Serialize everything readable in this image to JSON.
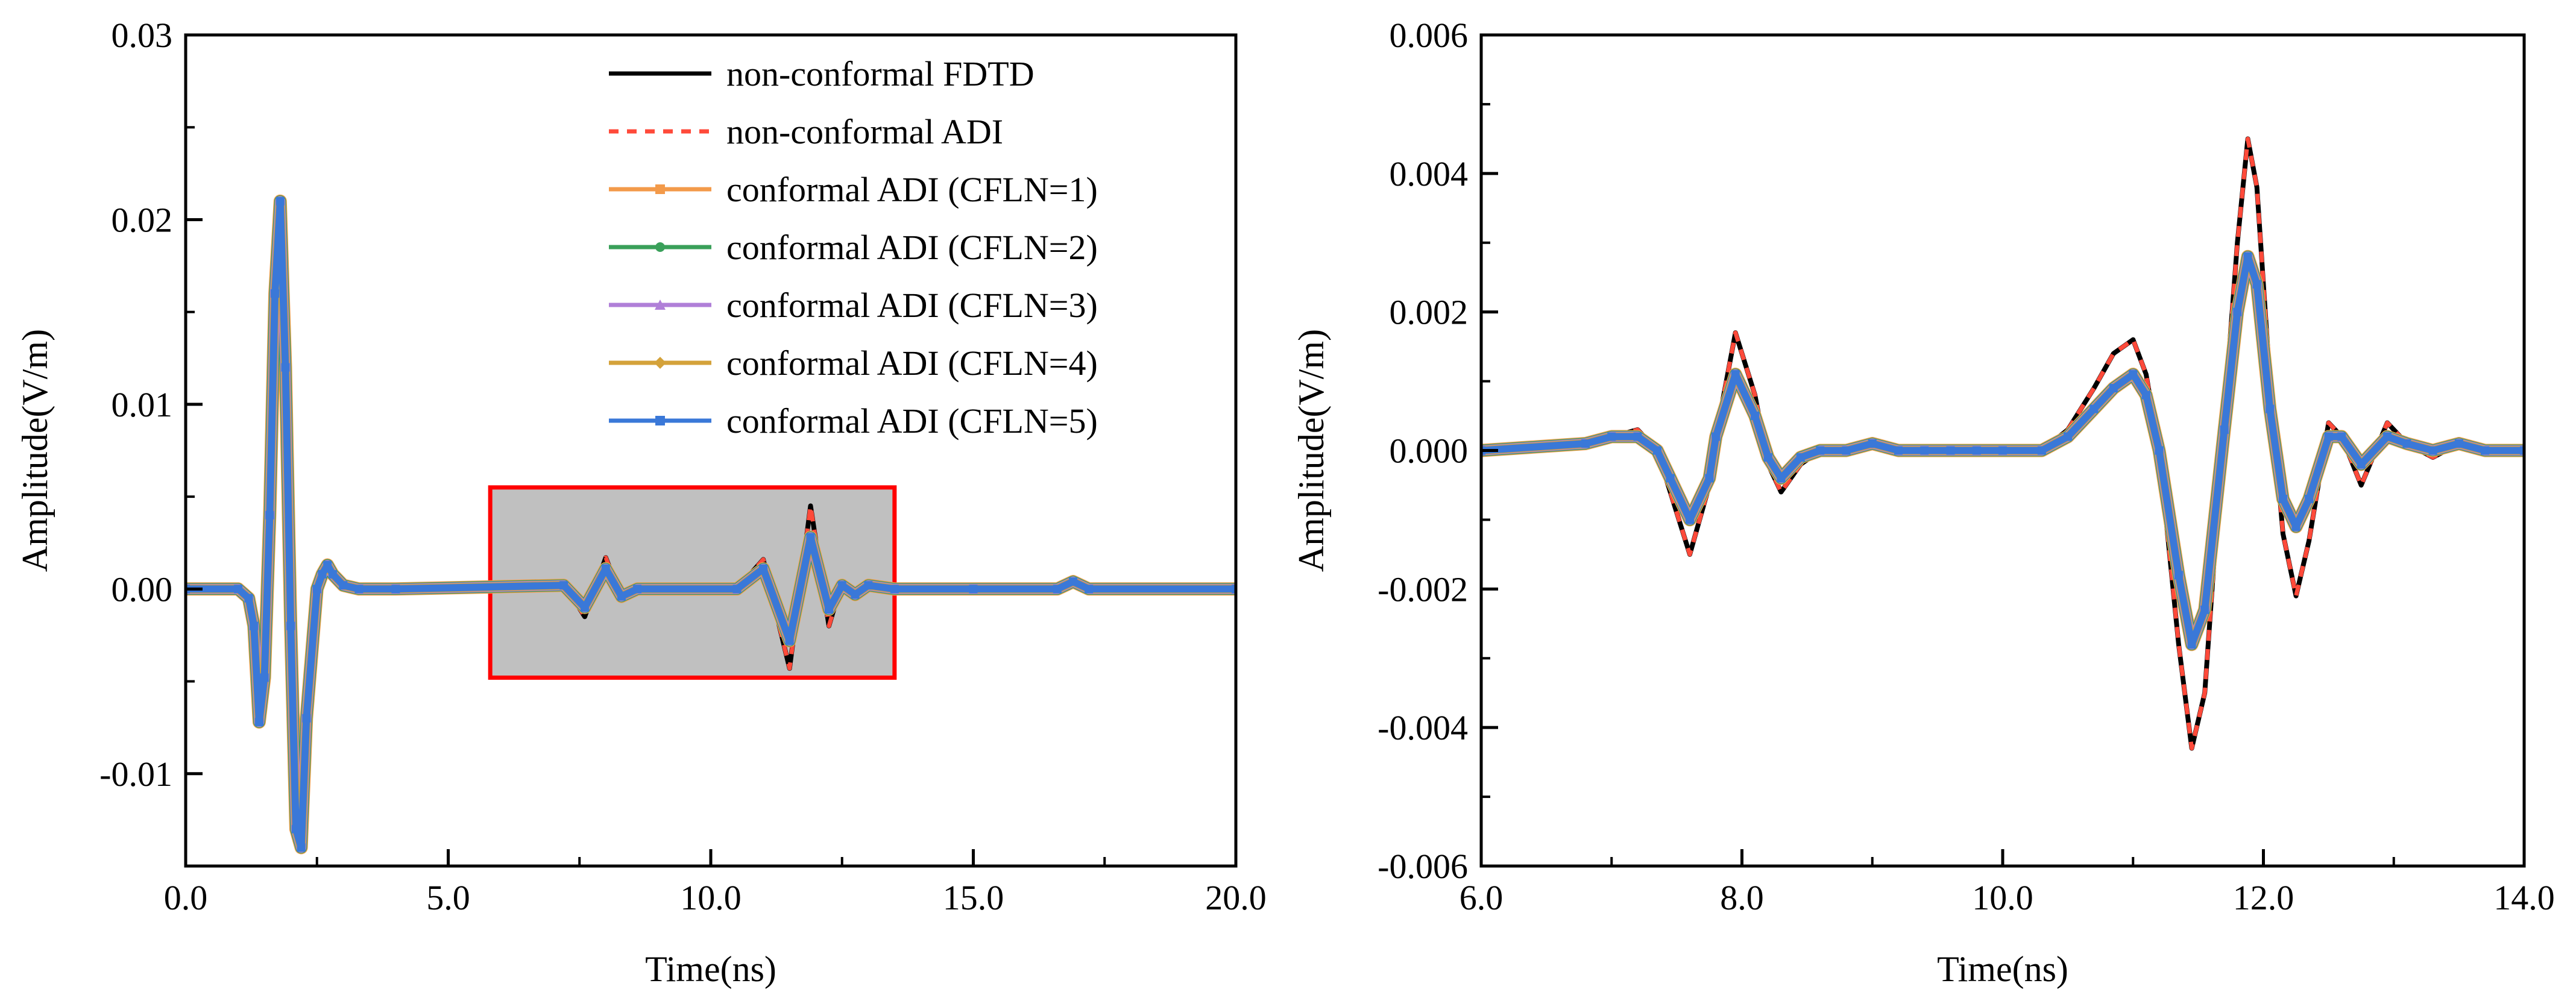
{
  "colors": {
    "fdtd": "#000000",
    "adi": "#ff4a3a",
    "cfl1": "#f39a4a",
    "cfl2": "#3aa05a",
    "cfl3": "#b07fd8",
    "cfl4": "#d4a23a",
    "cfl5": "#3a78d8",
    "zoom_box_fill": "#c0c0c0",
    "zoom_box_stroke": "#ff0000"
  },
  "chart_data": [
    {
      "type": "line",
      "xlabel": "Time(ns)",
      "ylabel": "Amplitude(V/m)",
      "xlim": [
        0,
        20
      ],
      "ylim": [
        -0.015,
        0.03
      ],
      "xticks": [
        "0.0",
        "5.0",
        "10.0",
        "15.0",
        "20.0"
      ],
      "yticks": [
        "-0.01",
        "0.00",
        "0.01",
        "0.02",
        "0.03"
      ],
      "grid": false,
      "legend_position": "top-right",
      "zoom_box": {
        "x": [
          5.8,
          13.5
        ],
        "y": [
          -0.0048,
          0.0055
        ]
      },
      "series": [
        {
          "name": "non-conformal FDTD",
          "style": "solid"
        },
        {
          "name": "non-conformal ADI",
          "style": "dashed"
        },
        {
          "name": "conformal ADI (CFLN=1)",
          "marker": "square"
        },
        {
          "name": "conformal ADI (CFLN=2)",
          "marker": "circle"
        },
        {
          "name": "conformal ADI (CFLN=3)",
          "marker": "triangle"
        },
        {
          "name": "conformal ADI (CFLN=4)",
          "marker": "diamond"
        },
        {
          "name": "conformal ADI (CFLN=5)",
          "marker": "square"
        }
      ],
      "fdtd": {
        "x": [
          0.0,
          1.0,
          1.2,
          1.3,
          1.4,
          1.5,
          1.6,
          1.7,
          1.8,
          1.9,
          2.0,
          2.1,
          2.2,
          2.3,
          2.5,
          2.6,
          2.7,
          2.8,
          3.0,
          3.3,
          4.0,
          7.2,
          7.6,
          8.0,
          8.3,
          8.6,
          10.5,
          11.0,
          11.5,
          11.9,
          12.25,
          12.5,
          12.75,
          13.0,
          13.5,
          15.0,
          16.6,
          16.9,
          17.2,
          20.0
        ],
        "y": [
          0,
          0,
          -0.0005,
          -0.002,
          -0.0068,
          -0.0045,
          0.004,
          0.016,
          0.0212,
          0.012,
          -0.002,
          -0.013,
          -0.014,
          -0.007,
          0,
          0.0008,
          0.0013,
          0.0008,
          0.0002,
          0,
          0,
          0.0003,
          -0.0015,
          0.0017,
          -0.0005,
          0,
          0,
          0.0016,
          -0.0043,
          0.0045,
          -0.002,
          0.0004,
          -0.0005,
          0.0003,
          0,
          0,
          0,
          0.0005,
          0,
          0
        ]
      },
      "adi": {
        "x": [
          0.0,
          1.0,
          1.2,
          1.3,
          1.4,
          1.5,
          1.6,
          1.7,
          1.8,
          1.9,
          2.0,
          2.1,
          2.2,
          2.3,
          2.5,
          2.6,
          2.7,
          2.8,
          3.0,
          3.3,
          4.0,
          7.2,
          7.6,
          8.0,
          8.3,
          8.6,
          10.5,
          11.0,
          11.5,
          11.9,
          12.25,
          12.5,
          12.75,
          13.0,
          13.5,
          15.0,
          16.6,
          16.9,
          17.2,
          20.0
        ],
        "y": [
          0,
          0,
          -0.0005,
          -0.002,
          -0.0068,
          -0.0045,
          0.004,
          0.016,
          0.0212,
          0.012,
          -0.002,
          -0.013,
          -0.014,
          -0.007,
          0,
          0.0008,
          0.0013,
          0.0008,
          0.0002,
          0,
          0,
          0.0003,
          -0.0015,
          0.0017,
          -0.0005,
          0,
          0,
          0.0016,
          -0.0043,
          0.0045,
          -0.002,
          0.0004,
          -0.0005,
          0.0003,
          0,
          0,
          0,
          0.0005,
          0,
          0
        ]
      },
      "conformal": {
        "x": [
          0.0,
          1.0,
          1.2,
          1.3,
          1.4,
          1.5,
          1.6,
          1.7,
          1.8,
          1.9,
          2.0,
          2.1,
          2.2,
          2.3,
          2.5,
          2.6,
          2.7,
          2.8,
          3.0,
          3.3,
          4.0,
          7.2,
          7.6,
          8.0,
          8.3,
          8.6,
          10.5,
          11.0,
          11.5,
          11.9,
          12.25,
          12.5,
          12.75,
          13.0,
          13.5,
          15.0,
          16.6,
          16.9,
          17.2,
          20.0
        ],
        "y": [
          0,
          0,
          -0.0005,
          -0.002,
          -0.0072,
          -0.0048,
          0.004,
          0.016,
          0.021,
          0.012,
          -0.002,
          -0.013,
          -0.014,
          -0.007,
          0,
          0.0008,
          0.0013,
          0.0008,
          0.0002,
          0,
          0,
          0.0002,
          -0.001,
          0.0011,
          -0.0004,
          0,
          0,
          0.0011,
          -0.0028,
          0.0028,
          -0.0011,
          0.0002,
          -0.0003,
          0.0002,
          0,
          0,
          0,
          0.0004,
          0,
          0
        ]
      }
    },
    {
      "type": "line",
      "xlabel": "Time(ns)",
      "ylabel": "Amplitude(V/m)",
      "xlim": [
        6,
        14
      ],
      "ylim": [
        -0.006,
        0.006
      ],
      "xticks": [
        "6.0",
        "8.0",
        "10.0",
        "12.0",
        "14.0"
      ],
      "yticks": [
        "-0.006",
        "-0.004",
        "-0.002",
        "0.000",
        "0.002",
        "0.004",
        "0.006"
      ],
      "grid": false,
      "fdtd": {
        "x": [
          6.0,
          6.8,
          7.0,
          7.2,
          7.35,
          7.45,
          7.6,
          7.75,
          7.8,
          7.95,
          8.1,
          8.2,
          8.3,
          8.45,
          8.6,
          8.8,
          9.0,
          9.2,
          9.4,
          9.6,
          9.8,
          10.0,
          10.3,
          10.5,
          10.7,
          10.85,
          11.0,
          11.1,
          11.2,
          11.35,
          11.45,
          11.55,
          11.7,
          11.8,
          11.88,
          11.95,
          12.05,
          12.15,
          12.25,
          12.35,
          12.5,
          12.6,
          12.75,
          12.95,
          13.1,
          13.3,
          13.5,
          13.7,
          14.0
        ],
        "y": [
          0,
          0.0001,
          0.0002,
          0.0003,
          0.0,
          -0.0006,
          -0.0015,
          -0.0005,
          0.0002,
          0.0017,
          0.0008,
          -0.0002,
          -0.0006,
          -0.0002,
          0,
          0.0,
          0.0001,
          0.0,
          0.0,
          0.0,
          0.0,
          0.0,
          0.0,
          0.0003,
          0.0009,
          0.0014,
          0.0016,
          0.0011,
          0.0,
          -0.0028,
          -0.0043,
          -0.0035,
          0.0005,
          0.003,
          0.0045,
          0.0038,
          0.001,
          -0.0012,
          -0.0021,
          -0.0013,
          0.0004,
          0.0002,
          -0.0005,
          0.0004,
          0.0001,
          -0.0001,
          0.0001,
          0.0,
          0.0
        ]
      },
      "adi": {
        "x": [
          6.0,
          6.8,
          7.0,
          7.2,
          7.35,
          7.45,
          7.6,
          7.75,
          7.8,
          7.95,
          8.1,
          8.2,
          8.3,
          8.45,
          8.6,
          8.8,
          9.0,
          9.2,
          9.4,
          9.6,
          9.8,
          10.0,
          10.3,
          10.5,
          10.7,
          10.85,
          11.0,
          11.1,
          11.2,
          11.35,
          11.45,
          11.55,
          11.7,
          11.8,
          11.88,
          11.95,
          12.05,
          12.15,
          12.25,
          12.35,
          12.5,
          12.6,
          12.75,
          12.95,
          13.1,
          13.3,
          13.5,
          13.7,
          14.0
        ],
        "y": [
          0,
          0.0001,
          0.0002,
          0.0003,
          0.0,
          -0.0006,
          -0.0015,
          -0.0005,
          0.0002,
          0.0017,
          0.0008,
          -0.0002,
          -0.0006,
          -0.0002,
          0,
          0.0,
          0.0001,
          0.0,
          0.0,
          0.0,
          0.0,
          0.0,
          0.0,
          0.0003,
          0.0009,
          0.0014,
          0.0016,
          0.0011,
          0.0,
          -0.0028,
          -0.0043,
          -0.0035,
          0.0005,
          0.003,
          0.0045,
          0.0038,
          0.001,
          -0.0012,
          -0.0021,
          -0.0013,
          0.0004,
          0.0002,
          -0.0005,
          0.0004,
          0.0001,
          -0.0001,
          0.0001,
          0.0,
          0.0
        ]
      },
      "conformal": {
        "x": [
          6.0,
          6.8,
          7.0,
          7.2,
          7.35,
          7.45,
          7.6,
          7.75,
          7.8,
          7.95,
          8.1,
          8.2,
          8.3,
          8.45,
          8.6,
          8.8,
          9.0,
          9.2,
          9.4,
          9.6,
          9.8,
          10.0,
          10.3,
          10.5,
          10.7,
          10.85,
          11.0,
          11.1,
          11.2,
          11.35,
          11.45,
          11.55,
          11.7,
          11.8,
          11.88,
          11.95,
          12.05,
          12.15,
          12.25,
          12.35,
          12.5,
          12.6,
          12.75,
          12.95,
          13.1,
          13.3,
          13.5,
          13.7,
          14.0
        ],
        "y": [
          0,
          0.0001,
          0.0002,
          0.0002,
          0.0,
          -0.0004,
          -0.001,
          -0.0004,
          0.0002,
          0.0011,
          0.0005,
          -0.0001,
          -0.0004,
          -0.0001,
          0,
          0.0,
          0.0001,
          0.0,
          0.0,
          0.0,
          0.0,
          0.0,
          0.0,
          0.0002,
          0.0006,
          0.0009,
          0.0011,
          0.0008,
          0.0,
          -0.0018,
          -0.0028,
          -0.0023,
          0.0003,
          0.002,
          0.0028,
          0.0024,
          0.0006,
          -0.0007,
          -0.0011,
          -0.0007,
          0.0002,
          0.0002,
          -0.0002,
          0.0002,
          0.0001,
          0.0,
          0.0001,
          0.0,
          0.0
        ]
      }
    }
  ]
}
